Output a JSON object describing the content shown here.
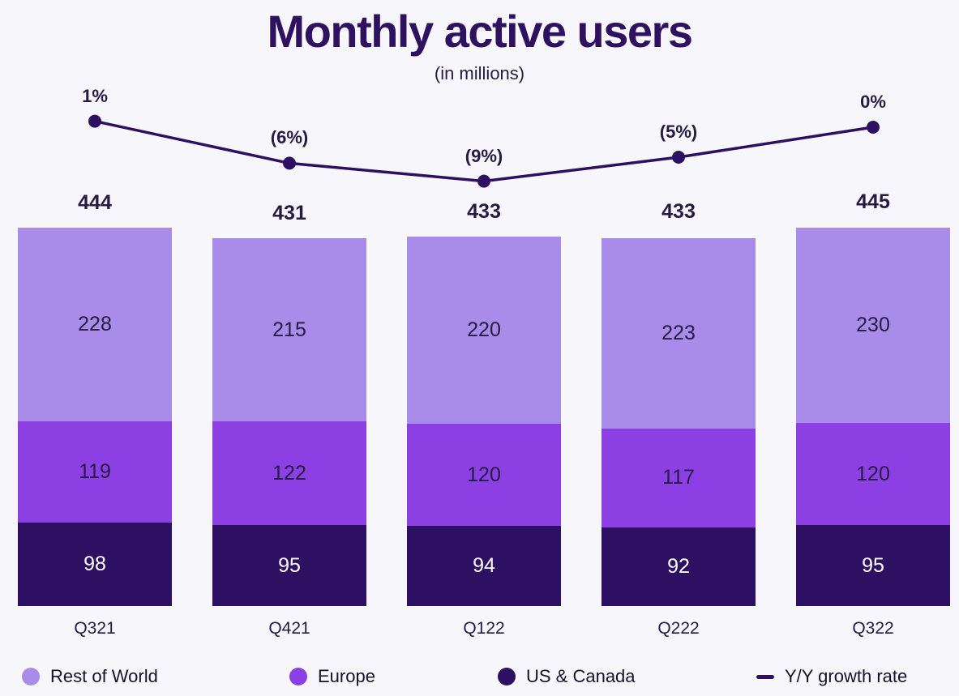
{
  "title": "Monthly active users",
  "subtitle": "(in millions)",
  "colors": {
    "background": "#f7f6fb",
    "rest_of_world": "#a98ce9",
    "europe": "#8c3fe3",
    "us_canada": "#2d1062",
    "line": "#2d1062",
    "text_dark": "#241c42",
    "text_on_dark": "#ffffff"
  },
  "chart_data": {
    "type": "bar",
    "subtype": "stacked-bar-with-growth-line",
    "title": "Monthly active users",
    "subtitle": "(in millions)",
    "categories": [
      "Q321",
      "Q421",
      "Q122",
      "Q222",
      "Q322"
    ],
    "series": [
      {
        "name": "Rest of World",
        "color": "#a98ce9",
        "text_color": "#241c42",
        "values": [
          228,
          215,
          220,
          223,
          230
        ]
      },
      {
        "name": "Europe",
        "color": "#8c3fe3",
        "text_color": "#241c42",
        "values": [
          119,
          122,
          120,
          117,
          120
        ]
      },
      {
        "name": "US & Canada",
        "color": "#2d1062",
        "text_color": "#ffffff",
        "values": [
          98,
          95,
          94,
          92,
          95
        ]
      }
    ],
    "totals": [
      444,
      431,
      433,
      433,
      445
    ],
    "growth_line": {
      "name": "Y/Y growth rate",
      "color": "#2d1062",
      "values_pct": [
        1,
        -6,
        -9,
        -5,
        0
      ],
      "labels": [
        "1%",
        "(6%)",
        "(9%)",
        "(5%)",
        "0%"
      ]
    },
    "legend": [
      {
        "label": "Rest of World",
        "swatch": "dot",
        "color": "#a98ce9"
      },
      {
        "label": "Europe",
        "swatch": "dot",
        "color": "#8c3fe3"
      },
      {
        "label": "US & Canada",
        "swatch": "dot",
        "color": "#2d1062"
      },
      {
        "label": "Y/Y growth rate",
        "swatch": "dash",
        "color": "#2d1062"
      }
    ],
    "grid": false,
    "legend_position": "bottom"
  }
}
